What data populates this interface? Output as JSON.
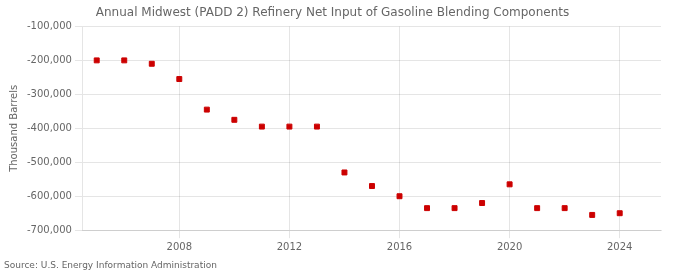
{
  "chart_data": {
    "type": "scatter",
    "title": "Annual Midwest (PADD 2) Refinery Net Input of Gasoline Blending Components",
    "ylabel": "Thousand Barrels",
    "annotations": [
      "Source: U.S. Energy Information Administration"
    ],
    "x": [
      2005,
      2006,
      2007,
      2008,
      2009,
      2010,
      2011,
      2012,
      2013,
      2014,
      2015,
      2016,
      2017,
      2018,
      2019,
      2020,
      2021,
      2022,
      2023,
      2024
    ],
    "values": [
      -200000,
      -200000,
      -210000,
      -255000,
      -345000,
      -375000,
      -395000,
      -395000,
      -395000,
      -530000,
      -570000,
      -600000,
      -635000,
      -635000,
      -620000,
      -565000,
      -635000,
      -635000,
      -655000,
      -650000
    ],
    "color": "#cc0000",
    "marker": "square",
    "xlim": [
      2004.5,
      2025.5
    ],
    "xticks": [
      2008,
      2012,
      2016,
      2020,
      2024
    ],
    "ylim": [
      -700000,
      -100000
    ],
    "yticks": [
      {
        "value": -700000,
        "label": "-700,000"
      },
      {
        "value": -600000,
        "label": "-600,000"
      },
      {
        "value": -500000,
        "label": "-500,000"
      },
      {
        "value": -400000,
        "label": "-400,000"
      },
      {
        "value": -300000,
        "label": "-300,000"
      },
      {
        "value": -200000,
        "label": "-200,000"
      },
      {
        "value": -100000,
        "label": "-100,000"
      }
    ],
    "grid": true
  }
}
